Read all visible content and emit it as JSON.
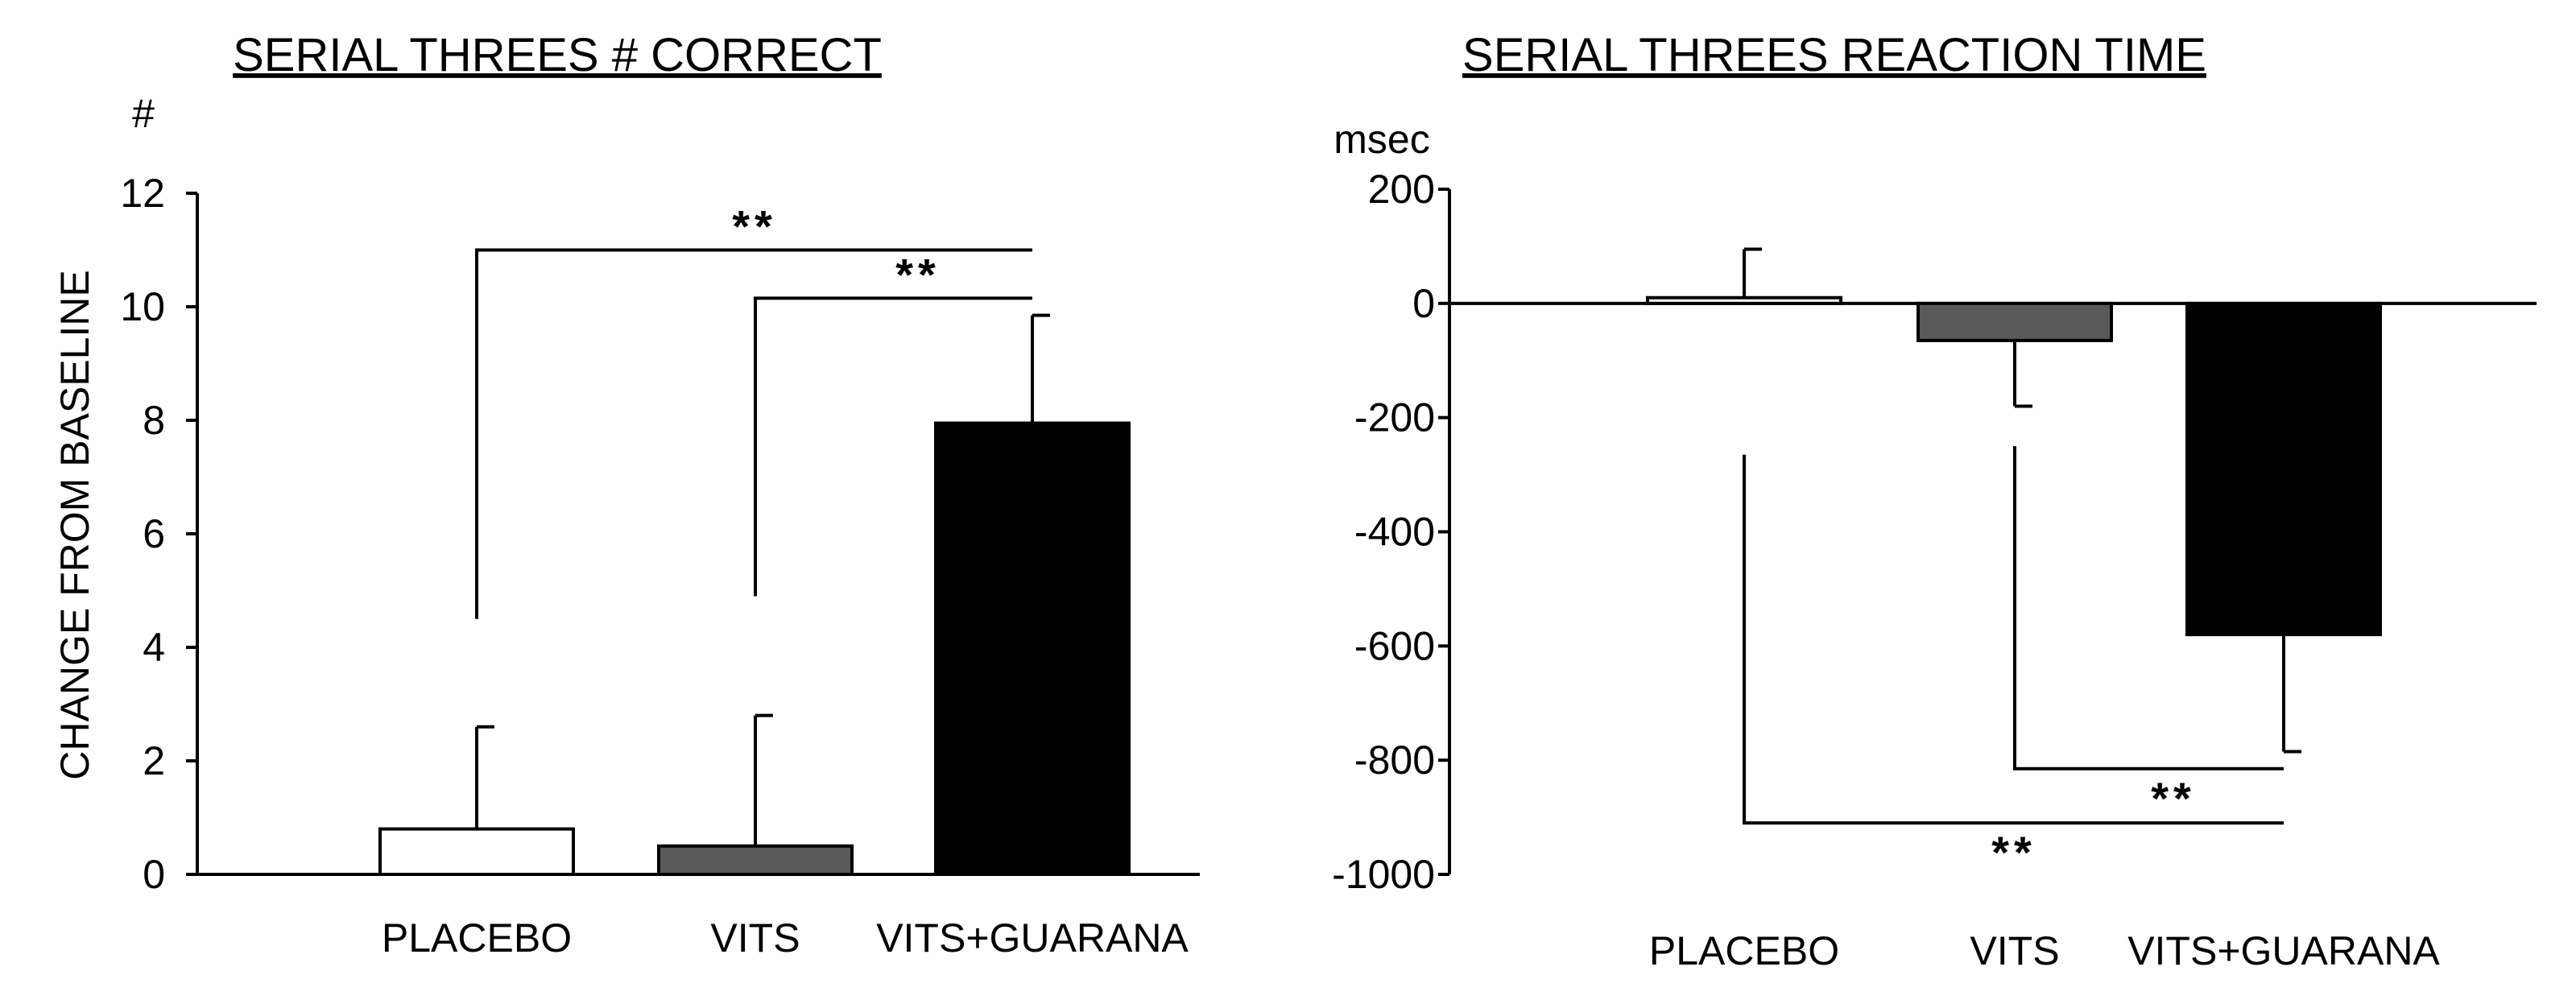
{
  "chart_data": [
    {
      "type": "bar",
      "title": "SERIAL THREES # CORRECT",
      "ylabel": "CHANGE FROM BASELINE",
      "unit": "#",
      "categories": [
        "PLACEBO",
        "VITS",
        "VITS+GUARANA"
      ],
      "values": [
        0.8,
        0.5,
        7.95
      ],
      "errors": [
        1.8,
        2.3,
        1.9
      ],
      "bar_colors": [
        "#ffffff",
        "#595959",
        "#000000"
      ],
      "ylim": [
        0,
        12
      ],
      "yticks": [
        0,
        2,
        4,
        6,
        8,
        10,
        12
      ],
      "significance": [
        {
          "from": 0,
          "to": 2,
          "label": "**",
          "y": 11.0,
          "drop_to": 4.5
        },
        {
          "from": 1,
          "to": 2,
          "label": "**",
          "y": 10.15,
          "drop_to": 4.9
        }
      ]
    },
    {
      "type": "bar",
      "title": "SERIAL THREES REACTION TIME",
      "ylabel": "",
      "unit": "msec",
      "categories": [
        "PLACEBO",
        "VITS",
        "VITS+GUARANA"
      ],
      "values": [
        10,
        -65,
        -580
      ],
      "errors": [
        85,
        115,
        205
      ],
      "bar_colors": [
        "#ffffff",
        "#595959",
        "#000000"
      ],
      "ylim": [
        -1000,
        200
      ],
      "yticks": [
        200,
        0,
        -200,
        -400,
        -600,
        -800,
        -1000
      ],
      "significance": [
        {
          "from": 1,
          "to": 2,
          "label": "**",
          "y": -815,
          "drop_to": -250
        },
        {
          "from": 0,
          "to": 2,
          "label": "**",
          "y": -910,
          "drop_to": -265
        }
      ]
    }
  ]
}
